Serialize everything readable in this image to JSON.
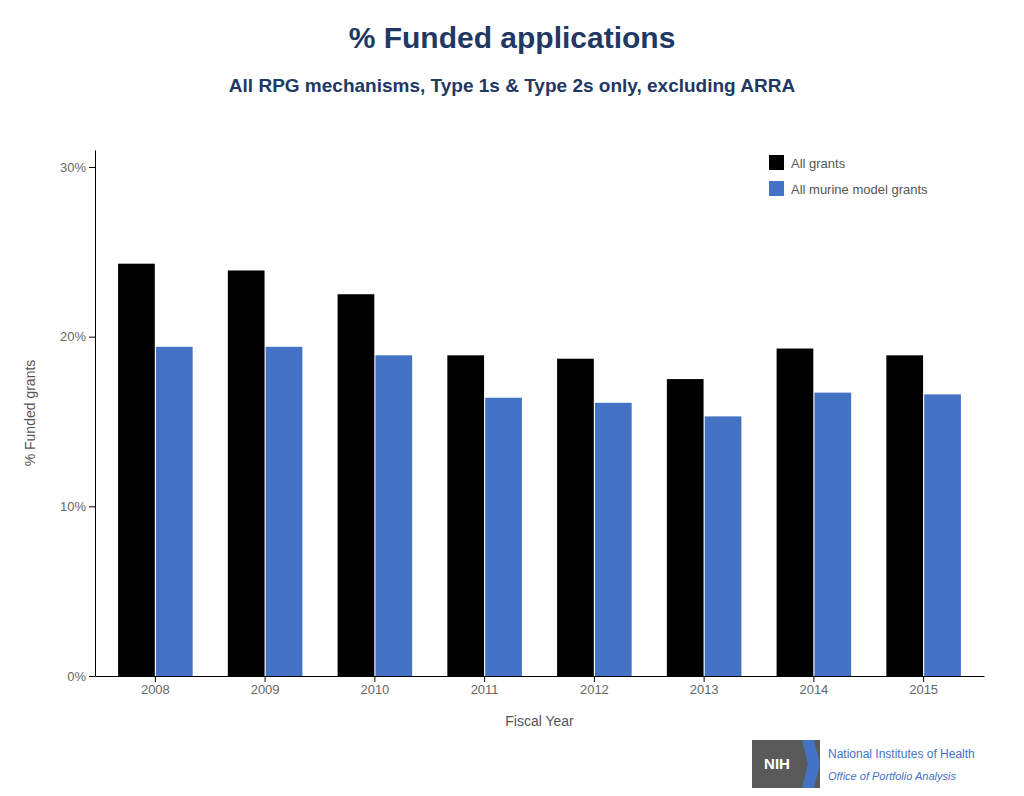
{
  "chart_data": {
    "type": "bar",
    "title": "% Funded applications",
    "subtitle": "All RPG mechanisms, Type 1s & Type 2s only, excluding ARRA",
    "x_label": "Fiscal Year",
    "y_label": "% Funded grants",
    "categories": [
      "2008",
      "2009",
      "2010",
      "2011",
      "2012",
      "2013",
      "2014",
      "2015"
    ],
    "series": [
      {
        "name": "All grants",
        "color": "#000000",
        "values": [
          24.3,
          23.9,
          22.5,
          18.9,
          18.7,
          17.5,
          19.3,
          18.9
        ]
      },
      {
        "name": "All murine model grants",
        "color": "#4472C4",
        "values": [
          19.4,
          19.4,
          18.9,
          16.4,
          16.1,
          15.3,
          16.7,
          16.6
        ]
      }
    ],
    "ylim": [
      0,
      31
    ],
    "yticks": [
      {
        "value": 0,
        "label": "0%"
      },
      {
        "value": 10,
        "label": "10%"
      },
      {
        "value": 20,
        "label": "20%"
      },
      {
        "value": 30,
        "label": "30%"
      }
    ],
    "grid": false,
    "legend": "upper right",
    "annotations": [
      "NIH",
      "National Institutes of Health",
      "Office of Portfolio Analysis"
    ]
  }
}
